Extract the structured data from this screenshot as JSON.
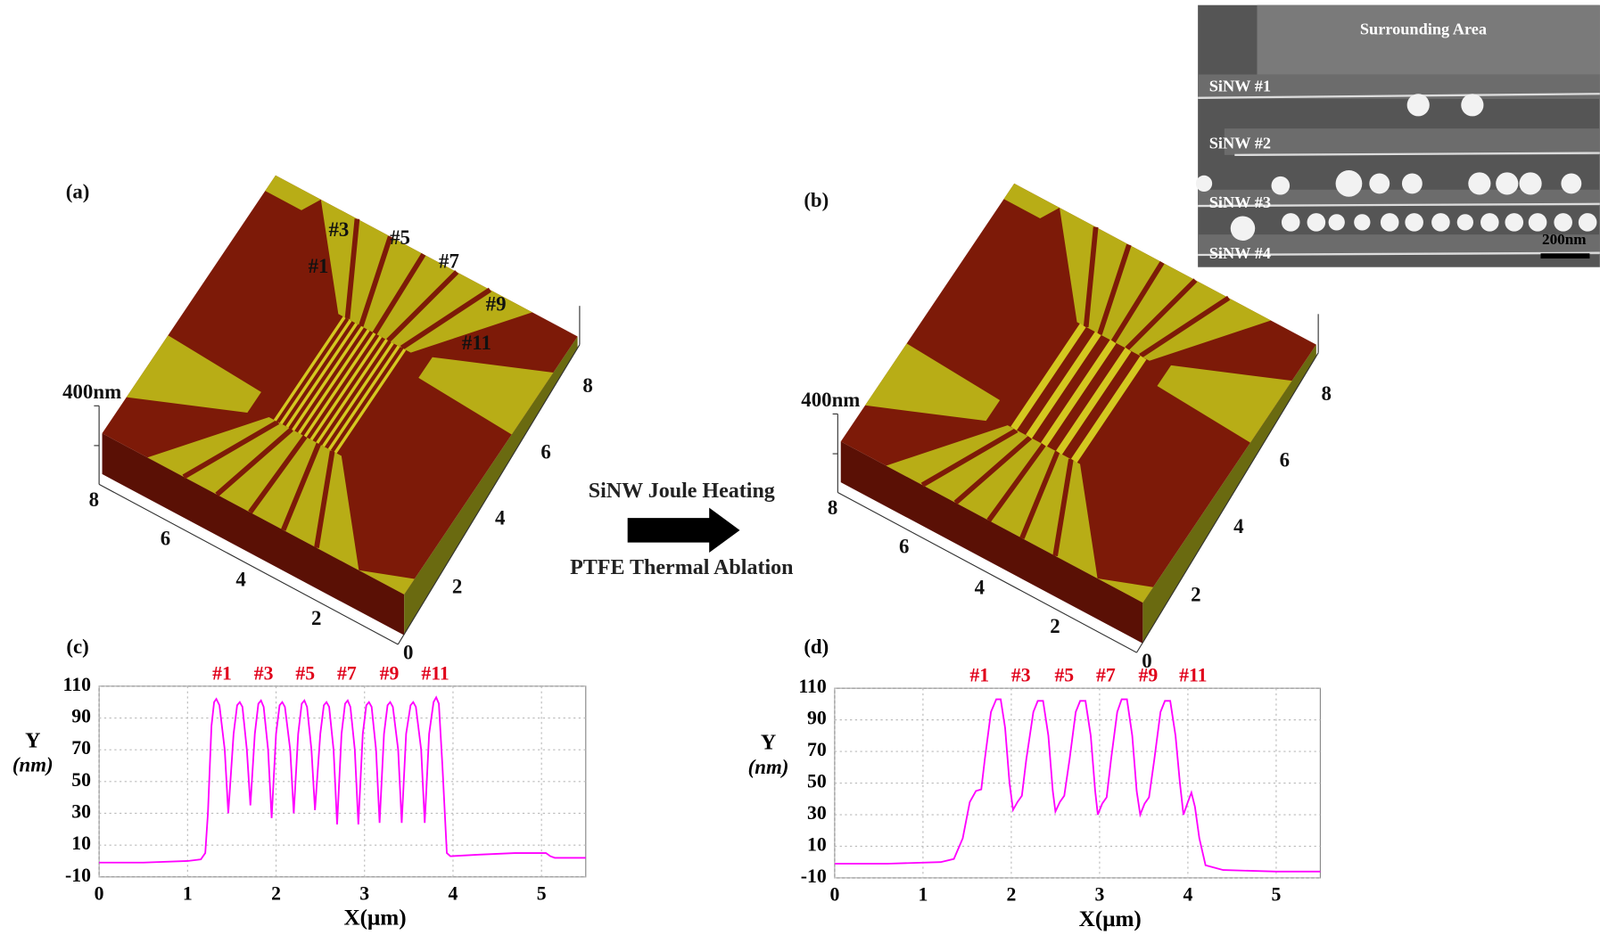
{
  "afm_images": [
    {
      "label": "(a)",
      "z_label": "400nm",
      "x_ticks": [
        "8",
        "6",
        "4",
        "2",
        "0"
      ],
      "y_ticks": [
        "2",
        "4",
        "6",
        "8"
      ],
      "wire_labels": [
        "#1",
        "#3",
        "#5",
        "#7",
        "#9",
        "#11"
      ]
    },
    {
      "label": "(b)",
      "z_label": "400nm",
      "x_ticks": [
        "8",
        "6",
        "4",
        "2",
        "0"
      ],
      "y_ticks": [
        "2",
        "4",
        "6",
        "8"
      ]
    }
  ],
  "process_arrow": {
    "top": "SiNW Joule Heating",
    "bottom": "PTFE Thermal Ablation"
  },
  "sem_inset": {
    "title": "Surrounding Area",
    "rows": [
      "SiNW #1",
      "SiNW #2",
      "SiNW #3",
      "SiNW #4"
    ],
    "scale_bar": "200nm"
  },
  "chart_data": [
    {
      "type": "line",
      "panel_label": "(c)",
      "xlabel": "X(μm)",
      "ylabel": [
        "Y",
        "(nm)"
      ],
      "color": "#ff00ff",
      "grid": true,
      "xlim": [
        0,
        5.5
      ],
      "xticks": [
        0,
        1,
        2,
        3,
        4,
        5
      ],
      "ylim": [
        -10,
        110
      ],
      "yticks": [
        -10,
        10,
        30,
        50,
        70,
        90,
        110
      ],
      "annotations": [
        {
          "text": "#1",
          "x": 1.39
        },
        {
          "text": "#3",
          "x": 1.86
        },
        {
          "text": "#5",
          "x": 2.33
        },
        {
          "text": "#7",
          "x": 2.8
        },
        {
          "text": "#9",
          "x": 3.28
        },
        {
          "text": "#11",
          "x": 3.8
        }
      ],
      "x": [
        0,
        0.5,
        1.0,
        1.15,
        1.2,
        1.23,
        1.27,
        1.3,
        1.325,
        1.36,
        1.42,
        1.46,
        1.52,
        1.56,
        1.59,
        1.62,
        1.67,
        1.71,
        1.76,
        1.8,
        1.83,
        1.86,
        1.91,
        1.95,
        2.0,
        2.04,
        2.07,
        2.1,
        2.16,
        2.2,
        2.25,
        2.29,
        2.32,
        2.35,
        2.4,
        2.44,
        2.5,
        2.54,
        2.57,
        2.6,
        2.65,
        2.69,
        2.74,
        2.78,
        2.81,
        2.84,
        2.89,
        2.93,
        2.98,
        3.02,
        3.05,
        3.08,
        3.13,
        3.17,
        3.22,
        3.26,
        3.29,
        3.32,
        3.38,
        3.42,
        3.47,
        3.52,
        3.55,
        3.58,
        3.64,
        3.68,
        3.73,
        3.78,
        3.81,
        3.84,
        3.88,
        3.93,
        3.97,
        4.3,
        4.7,
        5.05,
        5.1,
        5.15,
        5.5
      ],
      "values": [
        -1,
        -1,
        0,
        1,
        5,
        30,
        85,
        100,
        102,
        98,
        70,
        30,
        80,
        98,
        100,
        97,
        70,
        35,
        80,
        99,
        101,
        97,
        70,
        27,
        80,
        98,
        100,
        97,
        70,
        30,
        80,
        99,
        101,
        97,
        70,
        32,
        80,
        98,
        100,
        97,
        70,
        23,
        80,
        99,
        101,
        97,
        70,
        23,
        80,
        98,
        100,
        97,
        70,
        24,
        80,
        98,
        100,
        97,
        70,
        24,
        80,
        98,
        100,
        97,
        70,
        24,
        80,
        100,
        103,
        99,
        60,
        5,
        3,
        4,
        5,
        5,
        3,
        2,
        2
      ]
    },
    {
      "type": "line",
      "panel_label": "(d)",
      "xlabel": "X(μm)",
      "ylabel": [
        "Y",
        "(nm)"
      ],
      "color": "#ff00ff",
      "grid": true,
      "xlim": [
        0,
        5.5
      ],
      "xticks": [
        0,
        1,
        2,
        3,
        4,
        5
      ],
      "ylim": [
        -10,
        110
      ],
      "yticks": [
        -10,
        10,
        30,
        50,
        70,
        90,
        110
      ],
      "annotations": [
        {
          "text": "#1",
          "x": 1.64
        },
        {
          "text": "#3",
          "x": 2.11
        },
        {
          "text": "#5",
          "x": 2.6
        },
        {
          "text": "#7",
          "x": 3.07
        },
        {
          "text": "#9",
          "x": 3.55
        },
        {
          "text": "#11",
          "x": 4.06
        }
      ],
      "x": [
        0,
        0.6,
        1.2,
        1.35,
        1.45,
        1.53,
        1.6,
        1.66,
        1.7,
        1.77,
        1.83,
        1.88,
        1.93,
        1.98,
        2.02,
        2.07,
        2.12,
        2.17,
        2.25,
        2.3,
        2.36,
        2.42,
        2.47,
        2.5,
        2.55,
        2.6,
        2.66,
        2.73,
        2.78,
        2.84,
        2.9,
        2.95,
        2.98,
        3.03,
        3.08,
        3.13,
        3.2,
        3.25,
        3.31,
        3.37,
        3.42,
        3.46,
        3.51,
        3.56,
        3.62,
        3.69,
        3.74,
        3.8,
        3.86,
        3.91,
        3.95,
        4.0,
        4.04,
        4.08,
        4.13,
        4.2,
        4.4,
        5.0,
        5.5
      ],
      "values": [
        -1,
        -1,
        0,
        2,
        15,
        38,
        45,
        46,
        65,
        95,
        103,
        103,
        85,
        50,
        33,
        38,
        42,
        65,
        95,
        102,
        102,
        80,
        45,
        32,
        38,
        42,
        65,
        95,
        102,
        102,
        80,
        45,
        30,
        37,
        41,
        65,
        95,
        103,
        103,
        80,
        45,
        30,
        37,
        41,
        65,
        95,
        102,
        102,
        80,
        50,
        30,
        38,
        44,
        35,
        15,
        -2,
        -5,
        -6,
        -6
      ]
    }
  ]
}
